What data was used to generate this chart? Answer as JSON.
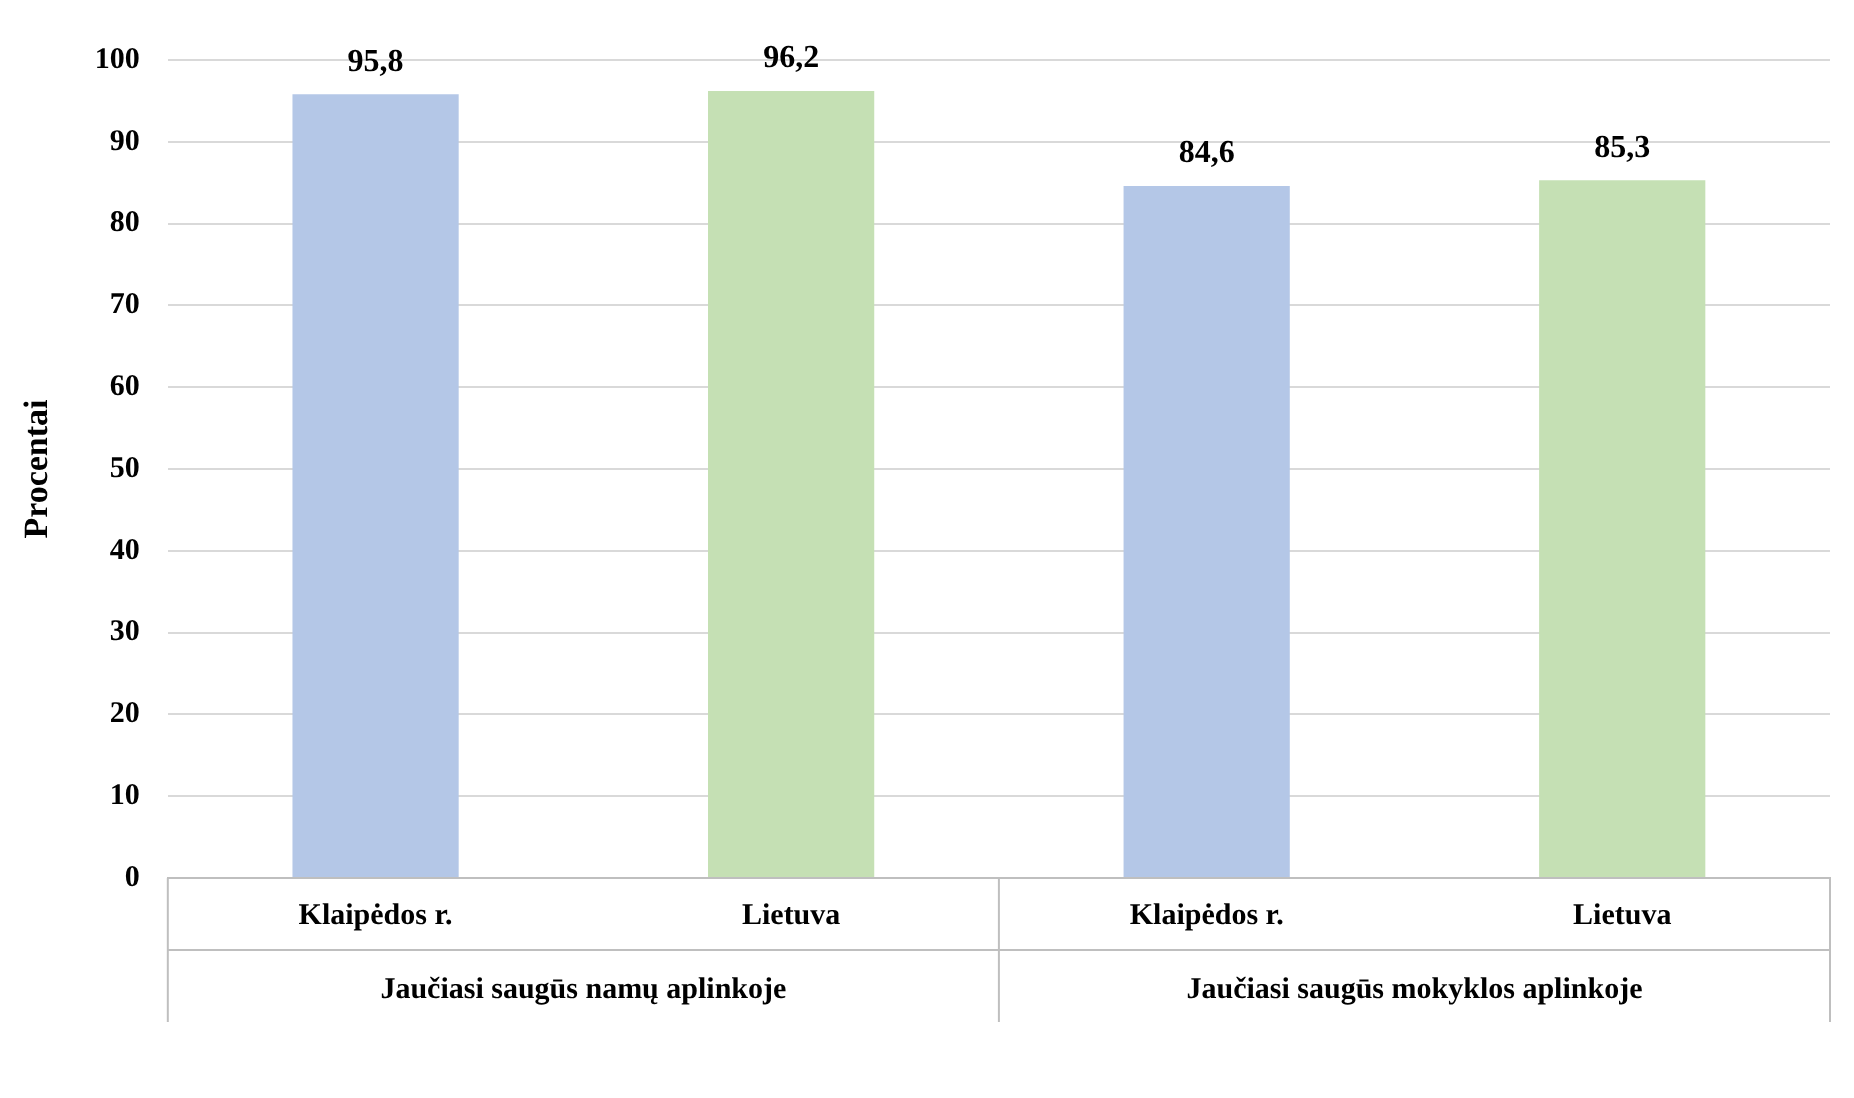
{
  "chart_data": {
    "type": "bar",
    "ylabel": "Procentai",
    "categories": [
      "Klaipėdos r.",
      "Lietuva",
      "Klaipėdos r.",
      "Lietuva"
    ],
    "values": [
      95.8,
      96.2,
      84.6,
      85.3
    ],
    "colors": [
      "#b4c7e7",
      "#c5e0b4",
      "#b4c7e7",
      "#c5e0b4"
    ],
    "ylim": [
      0,
      100
    ],
    "yticks": [
      0,
      10,
      20,
      30,
      40,
      50,
      60,
      70,
      80,
      90,
      100
    ],
    "value_labels": [
      "95,8",
      "96,2",
      "84,6",
      "85,3"
    ],
    "grid": "y",
    "legend": false,
    "annotations": [
      "Jaučiasi saugūs namų aplinkoje",
      "Jaučiasi saugūs mokyklos aplinkoje"
    ]
  }
}
